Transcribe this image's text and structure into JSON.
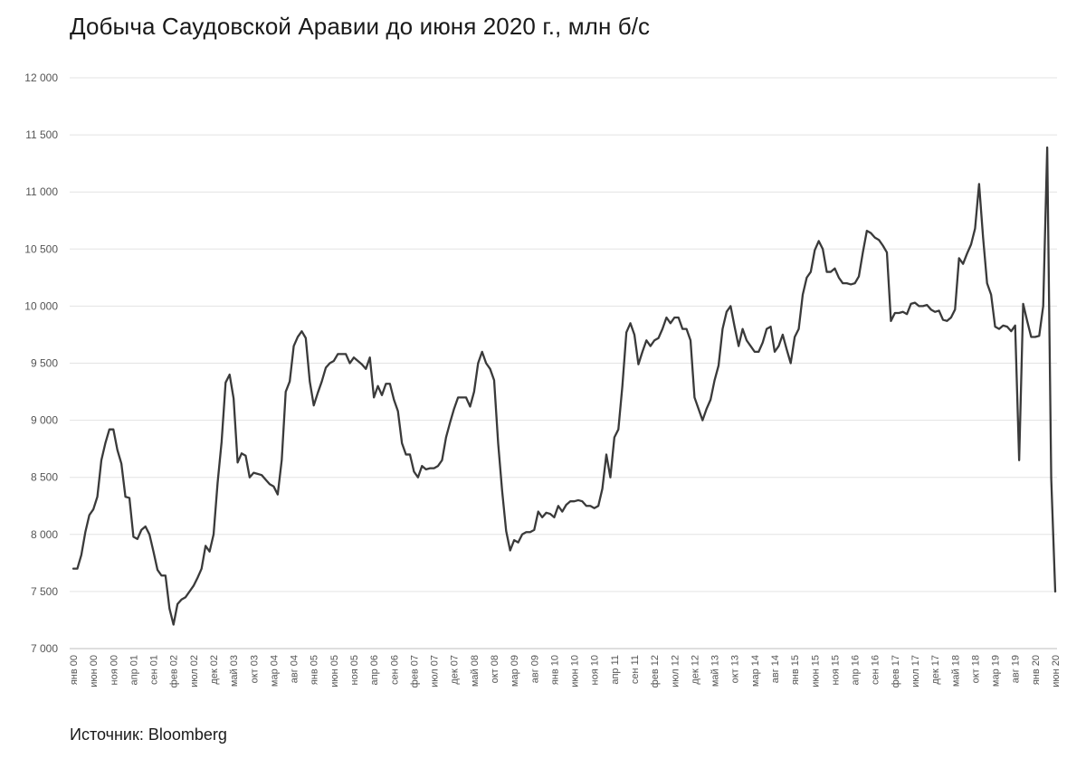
{
  "chart_data": {
    "type": "line",
    "title": "Добыча Саудовской Аравии до июня 2020 г., млн б/с",
    "source": "Источник: Bloomberg",
    "xlabel": "",
    "ylabel": "",
    "ylim": [
      7000,
      12000
    ],
    "y_ticks": [
      {
        "value": 7000,
        "label": "7 000"
      },
      {
        "value": 7500,
        "label": "7 500"
      },
      {
        "value": 8000,
        "label": "8 000"
      },
      {
        "value": 8500,
        "label": "8 500"
      },
      {
        "value": 9000,
        "label": "9 000"
      },
      {
        "value": 9500,
        "label": "9 500"
      },
      {
        "value": 10000,
        "label": "10 000"
      },
      {
        "value": 10500,
        "label": "10 500"
      },
      {
        "value": 11000,
        "label": "11 000"
      },
      {
        "value": 11500,
        "label": "11 500"
      },
      {
        "value": 12000,
        "label": "12 000"
      }
    ],
    "x_ticks": [
      "янв 00",
      "июн 00",
      "ноя 00",
      "апр 01",
      "сен 01",
      "фев 02",
      "июл 02",
      "дек 02",
      "май 03",
      "окт 03",
      "мар 04",
      "авг 04",
      "янв 05",
      "июн 05",
      "ноя 05",
      "апр 06",
      "сен 06",
      "фев 07",
      "июл 07",
      "дек 07",
      "май 08",
      "окт 08",
      "мар 09",
      "авг 09",
      "янв 10",
      "июн 10",
      "ноя 10",
      "апр 11",
      "сен 11",
      "фев 12",
      "июл 12",
      "дек 12",
      "май 13",
      "окт 13",
      "мар 14",
      "авг 14",
      "янв 15",
      "июн 15",
      "ноя 15",
      "апр 16",
      "сен 16",
      "фев 17",
      "июл 17",
      "дек 17",
      "май 18",
      "окт 18",
      "мар 19",
      "авг 19",
      "янв 20",
      "июн 20"
    ],
    "grid": true,
    "line_color": "#3a3a3a",
    "series": [
      {
        "name": "",
        "values": [
          7700,
          7700,
          7820,
          8020,
          8170,
          8220,
          8330,
          8650,
          8800,
          8920,
          8920,
          8740,
          8620,
          8330,
          8320,
          7980,
          7960,
          8040,
          8070,
          8000,
          7850,
          7690,
          7640,
          7640,
          7350,
          7210,
          7390,
          7430,
          7450,
          7500,
          7550,
          7620,
          7700,
          7900,
          7850,
          8000,
          8450,
          8810,
          9330,
          9400,
          9190,
          8630,
          8710,
          8690,
          8500,
          8540,
          8530,
          8520,
          8480,
          8440,
          8420,
          8350,
          8650,
          9250,
          9340,
          9650,
          9730,
          9780,
          9720,
          9340,
          9130,
          9240,
          9340,
          9460,
          9500,
          9520,
          9580,
          9580,
          9580,
          9500,
          9550,
          9520,
          9490,
          9450,
          9550,
          9200,
          9300,
          9220,
          9320,
          9320,
          9180,
          9080,
          8800,
          8700,
          8700,
          8550,
          8500,
          8600,
          8570,
          8580,
          8580,
          8600,
          8650,
          8850,
          8980,
          9100,
          9200,
          9200,
          9200,
          9120,
          9250,
          9500,
          9600,
          9500,
          9450,
          9350,
          8800,
          8380,
          8030,
          7860,
          7950,
          7930,
          8000,
          8020,
          8020,
          8040,
          8200,
          8150,
          8190,
          8180,
          8150,
          8250,
          8200,
          8260,
          8290,
          8290,
          8300,
          8290,
          8250,
          8250,
          8230,
          8250,
          8400,
          8700,
          8500,
          8850,
          8920,
          9300,
          9770,
          9850,
          9750,
          9490,
          9600,
          9700,
          9650,
          9700,
          9720,
          9800,
          9900,
          9850,
          9900,
          9900,
          9800,
          9800,
          9700,
          9200,
          9100,
          9000,
          9100,
          9180,
          9350,
          9480,
          9800,
          9950,
          10000,
          9820,
          9650,
          9800,
          9700,
          9650,
          9600,
          9600,
          9680,
          9800,
          9820,
          9600,
          9650,
          9750,
          9620,
          9500,
          9730,
          9800,
          10100,
          10250,
          10300,
          10490,
          10570,
          10500,
          10300,
          10300,
          10330,
          10250,
          10200,
          10200,
          10190,
          10200,
          10260,
          10470,
          10660,
          10640,
          10600,
          10580,
          10530,
          10470,
          9870,
          9940,
          9940,
          9950,
          9930,
          10020,
          10030,
          10000,
          10000,
          10010,
          9970,
          9950,
          9960,
          9880,
          9870,
          9900,
          9970,
          10420,
          10370,
          10460,
          10540,
          10680,
          11070,
          10600,
          10200,
          10100,
          9820,
          9800,
          9830,
          9820,
          9780,
          9830,
          8650,
          10020,
          9870,
          9730,
          9730,
          9740,
          10000,
          11390,
          8490,
          7500
        ]
      }
    ]
  }
}
